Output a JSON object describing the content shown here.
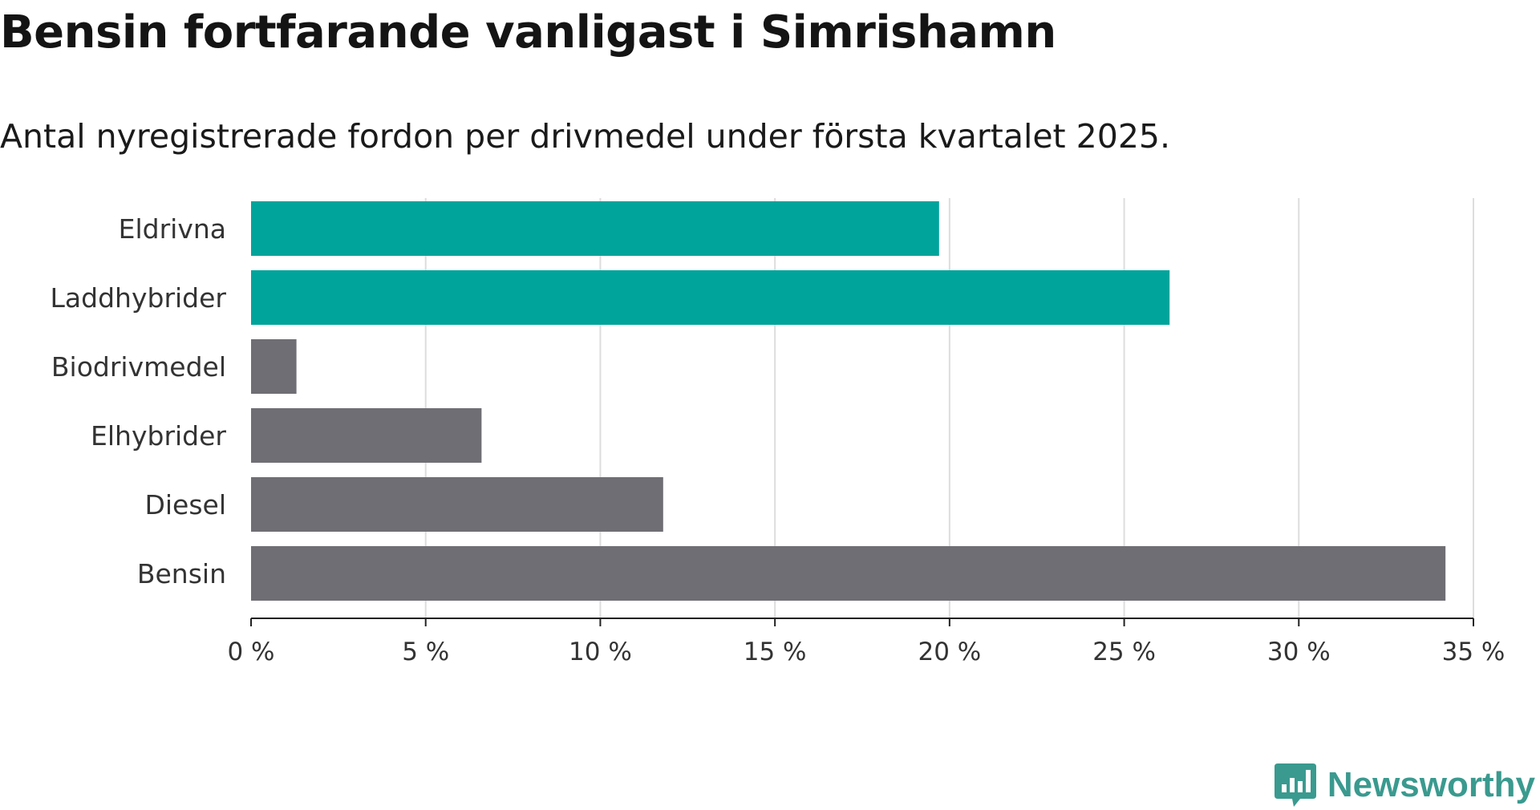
{
  "title": "Bensin fortfarande vanligast i Simrishamn",
  "subtitle": "Antal nyregistrerade fordon per drivmedel under första kvartalet 2025.",
  "brand": {
    "name": "Newsworthy",
    "color": "#3a9a8f",
    "icon": "newsworthy-logo-icon"
  },
  "colors": {
    "highlight": "#00a49b",
    "other": "#6f6e74",
    "grid": "#dddddd",
    "axis": "#222222"
  },
  "chart_data": {
    "type": "bar",
    "orientation": "horizontal",
    "categories": [
      "Eldrivna",
      "Laddhybrider",
      "Biodrivmedel",
      "Elhybrider",
      "Diesel",
      "Bensin"
    ],
    "values": [
      19.7,
      26.3,
      1.3,
      6.6,
      11.8,
      34.2
    ],
    "highlighted": [
      true,
      true,
      false,
      false,
      false,
      false
    ],
    "xlim": [
      0,
      35
    ],
    "xticks": [
      0,
      5,
      10,
      15,
      20,
      25,
      30,
      35
    ],
    "xtick_suffix": " %",
    "grid": true
  }
}
